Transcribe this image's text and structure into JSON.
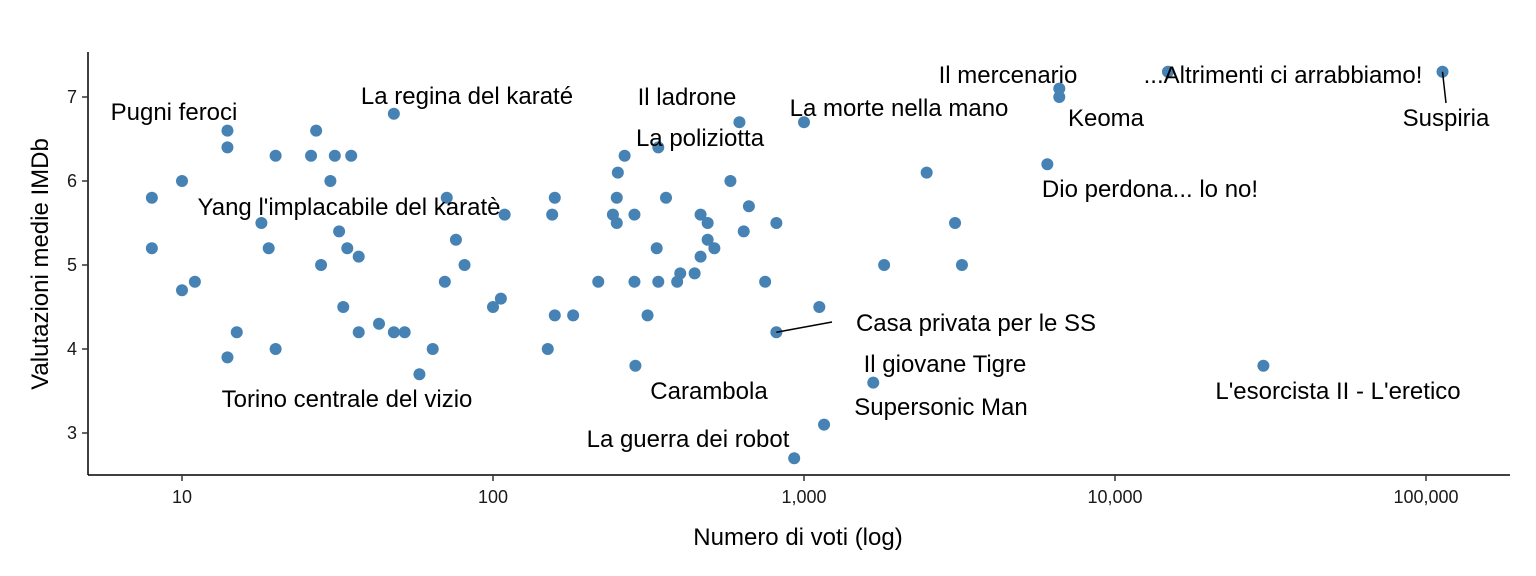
{
  "chart_data": {
    "type": "scatter",
    "title": "",
    "xlabel": "Numero di voti (log)",
    "ylabel": "Valutazioni medie IMDb",
    "xscale": "log",
    "xlim": [
      5,
      185000
    ],
    "ylim": [
      2.5,
      7.55
    ],
    "xticks": [
      10,
      100,
      1000,
      10000,
      100000
    ],
    "xtick_labels": [
      "10",
      "100",
      "1,000",
      "10,000",
      "100,000"
    ],
    "yticks": [
      3,
      4,
      5,
      6,
      7
    ],
    "ytick_labels": [
      "3",
      "4",
      "5",
      "6",
      "7"
    ],
    "grid": false,
    "point_color": "#4682B4",
    "points": [
      {
        "x": 8,
        "y": 5.8
      },
      {
        "x": 8,
        "y": 5.2
      },
      {
        "x": 10,
        "y": 6.0
      },
      {
        "x": 10,
        "y": 4.7
      },
      {
        "x": 11,
        "y": 4.8
      },
      {
        "x": 14,
        "y": 6.6,
        "label": "Pugni feroci"
      },
      {
        "x": 14,
        "y": 6.4
      },
      {
        "x": 14,
        "y": 3.9
      },
      {
        "x": 15,
        "y": 4.2
      },
      {
        "x": 18,
        "y": 5.5
      },
      {
        "x": 19,
        "y": 5.2
      },
      {
        "x": 20,
        "y": 6.3
      },
      {
        "x": 20,
        "y": 4.0
      },
      {
        "x": 26,
        "y": 6.3
      },
      {
        "x": 27,
        "y": 6.6
      },
      {
        "x": 28,
        "y": 5.0
      },
      {
        "x": 30,
        "y": 6.0
      },
      {
        "x": 31,
        "y": 6.3
      },
      {
        "x": 32,
        "y": 5.4
      },
      {
        "x": 33,
        "y": 4.5
      },
      {
        "x": 34,
        "y": 5.2
      },
      {
        "x": 35,
        "y": 6.3
      },
      {
        "x": 37,
        "y": 5.1
      },
      {
        "x": 37,
        "y": 4.2
      },
      {
        "x": 43,
        "y": 4.3
      },
      {
        "x": 48,
        "y": 6.8,
        "label": "La regina del karaté"
      },
      {
        "x": 48,
        "y": 4.2
      },
      {
        "x": 52,
        "y": 4.2
      },
      {
        "x": 58,
        "y": 3.7,
        "label": "Torino centrale del vizio"
      },
      {
        "x": 64,
        "y": 4.0
      },
      {
        "x": 70,
        "y": 4.8
      },
      {
        "x": 71,
        "y": 5.8
      },
      {
        "x": 76,
        "y": 5.3
      },
      {
        "x": 81,
        "y": 5.0
      },
      {
        "x": 100,
        "y": 4.5
      },
      {
        "x": 106,
        "y": 4.6
      },
      {
        "x": 109,
        "y": 5.6,
        "label": "Yang l'implacabile del karatè"
      },
      {
        "x": 150,
        "y": 4.0
      },
      {
        "x": 155,
        "y": 5.6
      },
      {
        "x": 158,
        "y": 5.8
      },
      {
        "x": 158,
        "y": 4.4
      },
      {
        "x": 181,
        "y": 4.4
      },
      {
        "x": 218,
        "y": 4.8
      },
      {
        "x": 243,
        "y": 5.6
      },
      {
        "x": 250,
        "y": 5.8
      },
      {
        "x": 250,
        "y": 5.5
      },
      {
        "x": 252,
        "y": 6.1
      },
      {
        "x": 265,
        "y": 6.3
      },
      {
        "x": 285,
        "y": 5.6
      },
      {
        "x": 285,
        "y": 4.8
      },
      {
        "x": 287,
        "y": 3.8,
        "label": "Carambola"
      },
      {
        "x": 314,
        "y": 4.4
      },
      {
        "x": 336,
        "y": 5.2
      },
      {
        "x": 340,
        "y": 4.8
      },
      {
        "x": 340,
        "y": 6.4,
        "label": "La poliziotta"
      },
      {
        "x": 360,
        "y": 5.8
      },
      {
        "x": 391,
        "y": 4.8
      },
      {
        "x": 400,
        "y": 4.9
      },
      {
        "x": 445,
        "y": 4.9
      },
      {
        "x": 465,
        "y": 5.1
      },
      {
        "x": 465,
        "y": 5.6
      },
      {
        "x": 490,
        "y": 5.5
      },
      {
        "x": 490,
        "y": 5.3
      },
      {
        "x": 515,
        "y": 5.2
      },
      {
        "x": 580,
        "y": 6.0
      },
      {
        "x": 620,
        "y": 6.7,
        "label": "Il ladrone"
      },
      {
        "x": 640,
        "y": 5.4
      },
      {
        "x": 665,
        "y": 5.7
      },
      {
        "x": 750,
        "y": 4.8
      },
      {
        "x": 815,
        "y": 5.5
      },
      {
        "x": 815,
        "y": 4.2,
        "label": "Casa privata per le SS"
      },
      {
        "x": 930,
        "y": 2.7,
        "label": "La guerra dei robot"
      },
      {
        "x": 1000,
        "y": 6.7,
        "label": "La morte nella mano"
      },
      {
        "x": 1120,
        "y": 4.5
      },
      {
        "x": 1160,
        "y": 3.1,
        "label": "Supersonic Man"
      },
      {
        "x": 1670,
        "y": 3.6,
        "label": "Il giovane Tigre"
      },
      {
        "x": 1810,
        "y": 5.0
      },
      {
        "x": 2480,
        "y": 6.1
      },
      {
        "x": 3060,
        "y": 5.5
      },
      {
        "x": 3220,
        "y": 5.0
      },
      {
        "x": 6060,
        "y": 6.2,
        "label": "Dio perdona... lo no!"
      },
      {
        "x": 6620,
        "y": 7.1,
        "label": "Il mercenario"
      },
      {
        "x": 6620,
        "y": 7.0,
        "label": "Keoma"
      },
      {
        "x": 14800,
        "y": 7.3,
        "label": "...Altrimenti ci arrabbiamo!"
      },
      {
        "x": 30000,
        "y": 3.8,
        "label": "L'esorcista II - L'eretico"
      },
      {
        "x": 113000,
        "y": 7.3,
        "label": "Suspiria"
      }
    ]
  }
}
